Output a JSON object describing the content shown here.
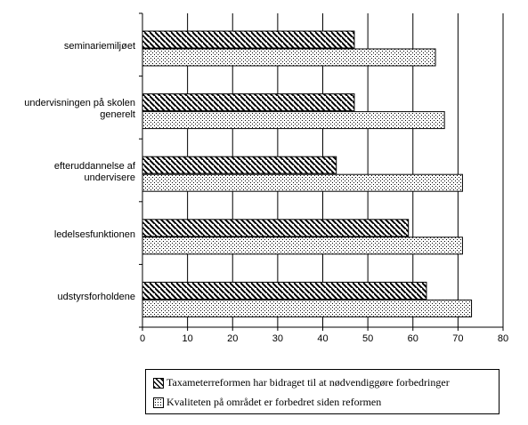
{
  "chart_data": {
    "type": "bar",
    "orientation": "horizontal",
    "categories": [
      "seminariemiljøet",
      "undervisningen på skolen generelt",
      "efteruddannelse af undervisere",
      "ledelsesfunktionen",
      "udstyrsforholdene"
    ],
    "series": [
      {
        "name": "Taxameterreformen har bidraget til at nødvendiggøre forbedringer",
        "pattern": "hatch",
        "color": "#000000",
        "values": [
          47,
          47,
          43,
          59,
          63
        ]
      },
      {
        "name": "Kvaliteten på området er forbedret siden reformen",
        "pattern": "dots",
        "color": "#000000",
        "values": [
          65,
          67,
          71,
          71,
          73
        ]
      }
    ],
    "xlim": [
      0,
      80
    ],
    "xticks": [
      0,
      10,
      20,
      30,
      40,
      50,
      60,
      70,
      80
    ],
    "grid": true
  }
}
